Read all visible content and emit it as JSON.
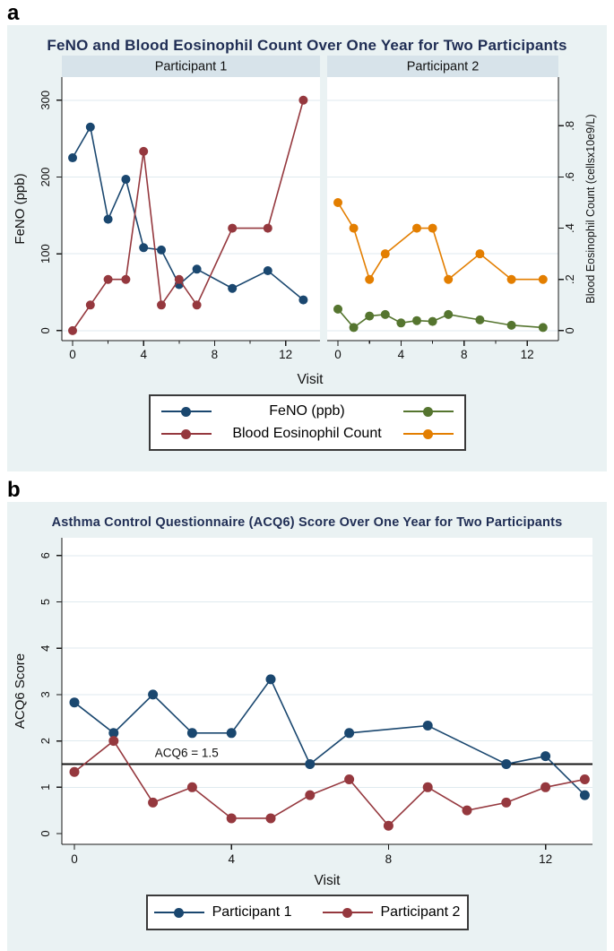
{
  "colors": {
    "background": "#eaf2f3",
    "panel_header": "#d7e3ea",
    "plot_bg": "#ffffff",
    "gridline": "#dfeaef",
    "axis": "#1a1a1a",
    "title": "#1f2d54",
    "navy": "#1a476f",
    "maroon": "#95383e",
    "green": "#55752f",
    "orange": "#e37e00"
  },
  "figures": {
    "a": {
      "label": "a",
      "title": "FeNO and Blood Eosinophil Count Over One Year for Two Participants",
      "legend": {
        "rows": [
          {
            "label": "FeNO (ppb)",
            "colors": [
              "#1a476f",
              "#55752f"
            ]
          },
          {
            "label": "Blood Eosinophil Count",
            "colors": [
              "#95383e",
              "#e37e00"
            ]
          }
        ]
      }
    },
    "b": {
      "label": "b",
      "title": "Asthma Control Questionnaire (ACQ6) Score Over One Year for Two Participants",
      "legend": {
        "entries": [
          {
            "label": "Participant 1",
            "color": "#1a476f"
          },
          {
            "label": "Participant 2",
            "color": "#95383e"
          }
        ]
      }
    }
  },
  "chart_data": [
    {
      "type": "line",
      "title": "FeNO and Blood Eosinophil Count Over One Year for Two Participants",
      "xlabel": "Visit",
      "x_range": [
        -0.6,
        13.9
      ],
      "x_ticks_major": [
        0,
        4,
        8,
        12
      ],
      "x_ticks_minor": [
        2,
        6,
        10
      ],
      "left_axis": {
        "label": "FeNO (ppb)",
        "ticks": [
          0,
          100,
          200,
          300
        ],
        "tick_labels": [
          "0",
          "100",
          "200",
          "300"
        ],
        "range": [
          -13,
          330
        ]
      },
      "right_axis": {
        "label": "Blood Eosinophil Count (cellsx10e9/L)",
        "ticks": [
          0,
          0.2,
          0.4,
          0.6,
          0.8
        ],
        "tick_labels": [
          "0",
          ".2",
          ".4",
          ".6",
          ".8"
        ],
        "range": [
          -0.039,
          0.99
        ],
        "left_units_per_right_unit": 333.333
      },
      "grid_values_left": [
        0,
        100,
        200,
        300
      ],
      "panels": [
        {
          "title": "Participant 1",
          "series": [
            {
              "name": "FeNO (ppb)",
              "axis": "left",
              "color": "#1a476f",
              "x": [
                0,
                1,
                2,
                3,
                4,
                5,
                6,
                7,
                9,
                11,
                13
              ],
              "y": [
                225,
                265,
                145,
                197,
                108,
                105,
                60,
                80,
                55,
                78,
                40
              ]
            },
            {
              "name": "Blood Eosinophil Count",
              "axis": "right",
              "color": "#95383e",
              "x": [
                0,
                1,
                2,
                3,
                4,
                5,
                6,
                7,
                9,
                11,
                13
              ],
              "y": [
                0,
                0.1,
                0.2,
                0.2,
                0.7,
                0.1,
                0.2,
                0.1,
                0.4,
                0.4,
                0.9
              ]
            }
          ]
        },
        {
          "title": "Participant 2",
          "series": [
            {
              "name": "FeNO (ppb)",
              "axis": "left",
              "color": "#55752f",
              "x": [
                0,
                1,
                2,
                3,
                4,
                5,
                6,
                7,
                9,
                11,
                13
              ],
              "y": [
                28,
                4,
                19,
                21,
                10,
                13,
                12,
                21,
                14,
                7,
                4
              ]
            },
            {
              "name": "Blood Eosinophil Count",
              "axis": "right",
              "color": "#e37e00",
              "x": [
                0,
                1,
                2,
                3,
                5,
                6,
                7,
                9,
                11,
                13
              ],
              "y": [
                0.5,
                0.4,
                0.2,
                0.3,
                0.4,
                0.4,
                0.2,
                0.3,
                0.2,
                0.2
              ]
            }
          ]
        }
      ]
    },
    {
      "type": "line",
      "title": "Asthma Control Questionnaire (ACQ6) Score Over One Year for Two Participants",
      "xlabel": "Visit",
      "ylabel": "ACQ6 Score",
      "x_range": [
        -0.32,
        13.2
      ],
      "y_range": [
        -0.23,
        6.4
      ],
      "x_ticks": [
        0,
        4,
        8,
        12
      ],
      "y_ticks": [
        0,
        1,
        2,
        3,
        4,
        5,
        6
      ],
      "y_tick_labels": [
        "0",
        "1",
        "2",
        "3",
        "4",
        "5",
        "6"
      ],
      "grid_values": [
        1,
        2,
        3,
        4,
        5,
        6
      ],
      "ref_line": {
        "y": 1.5,
        "label": "ACQ6 = 1.5"
      },
      "series": [
        {
          "name": "Participant 1",
          "color": "#1a476f",
          "x": [
            0,
            1,
            2,
            3,
            4,
            5,
            6,
            7,
            9,
            11,
            12,
            13
          ],
          "y": [
            2.83,
            2.17,
            3.0,
            2.17,
            2.17,
            3.33,
            1.5,
            2.17,
            2.33,
            1.5,
            1.67,
            0.83
          ]
        },
        {
          "name": "Participant 2",
          "color": "#95383e",
          "x": [
            0,
            1,
            2,
            3,
            4,
            5,
            6,
            7,
            8,
            9,
            10,
            11,
            12,
            13
          ],
          "y": [
            1.33,
            2.0,
            0.67,
            1.0,
            0.33,
            0.33,
            0.83,
            1.17,
            0.17,
            1.0,
            0.5,
            0.67,
            1.0,
            1.17
          ]
        }
      ]
    }
  ]
}
